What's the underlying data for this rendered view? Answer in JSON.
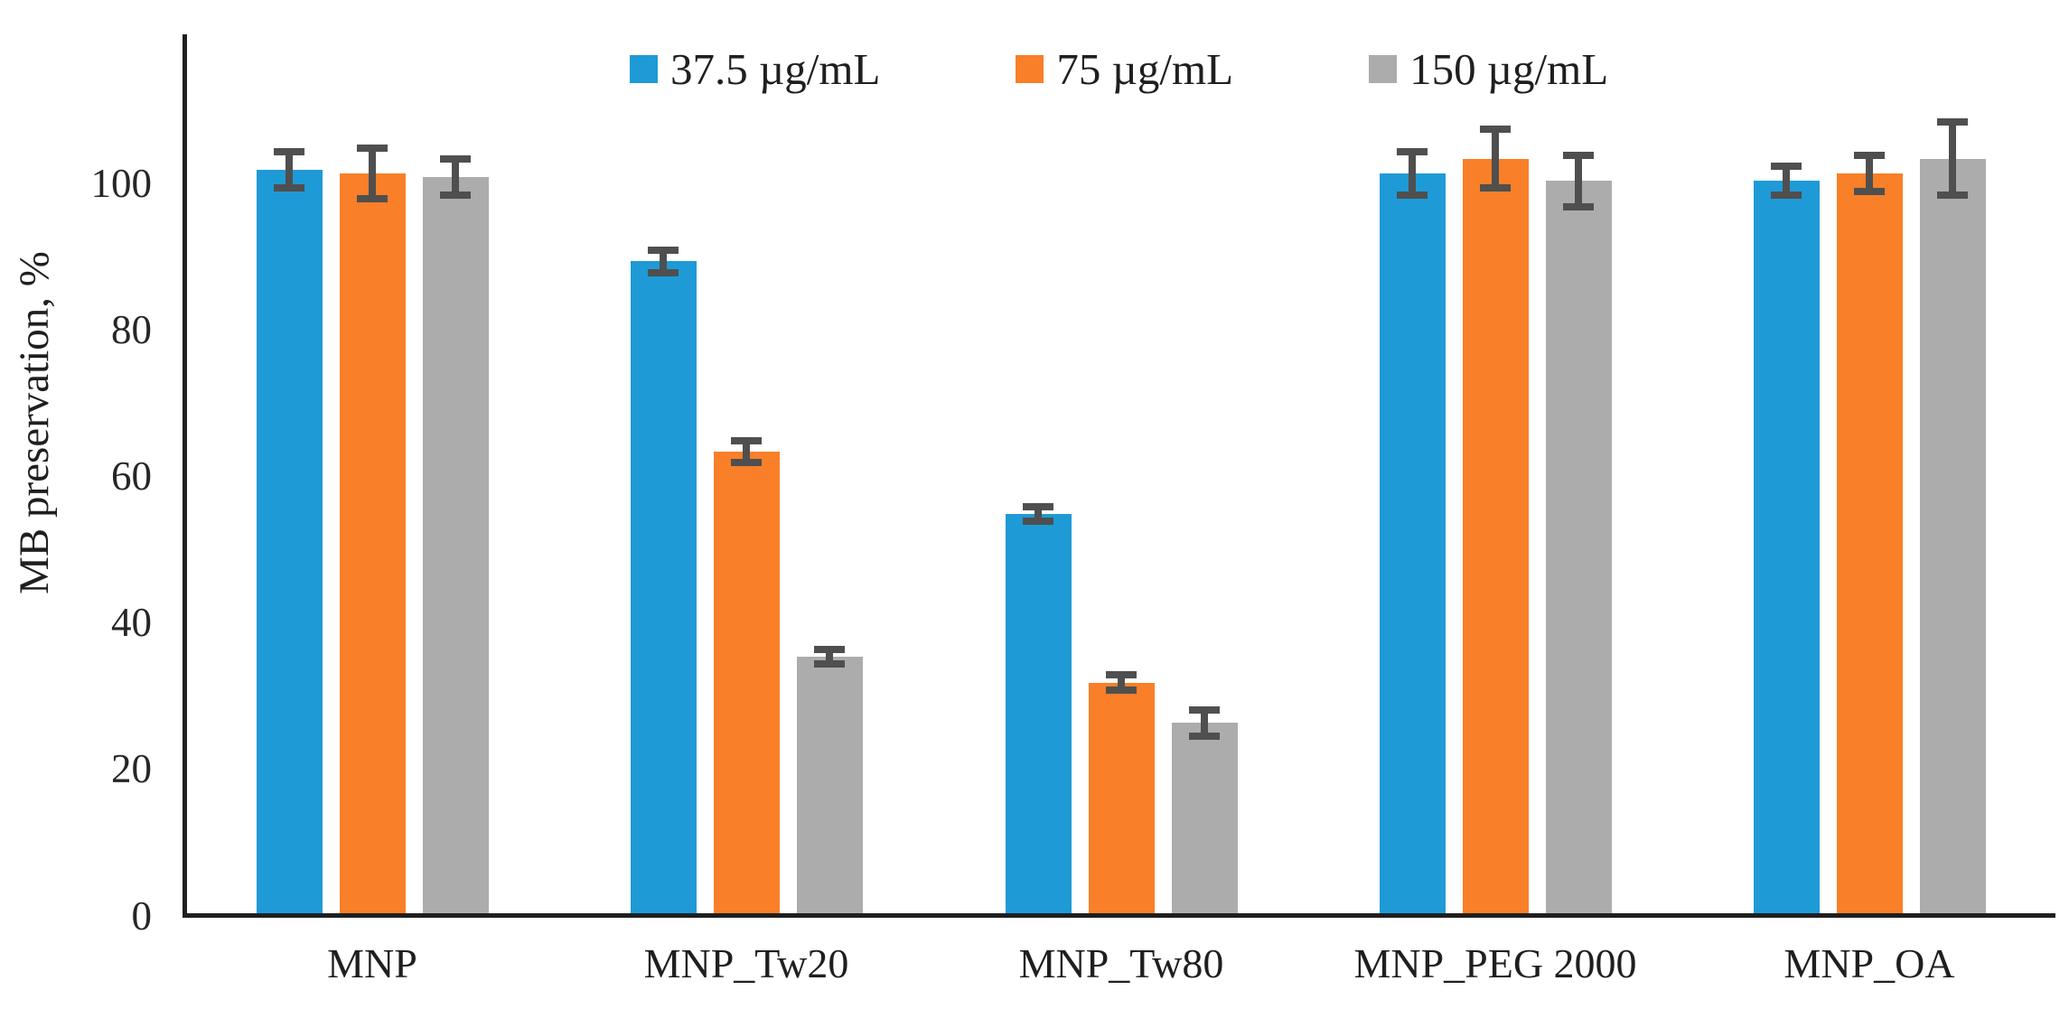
{
  "chart_data": {
    "type": "bar",
    "title": "",
    "xlabel": "",
    "ylabel": "MB preservation, %",
    "ylim": [
      0,
      120
    ],
    "yticks": [
      0,
      20,
      40,
      60,
      80,
      100
    ],
    "grid": false,
    "legend_position": "top",
    "error_bars": true,
    "categories": [
      "MNP",
      "MNP_Tw20",
      "MNP_Tw80",
      "MNP_PEG 2000",
      "MNP_OA"
    ],
    "series": [
      {
        "name": "37.5 µg/mL",
        "color": "#1E9AD7",
        "values": [
          101.5,
          89,
          54.5,
          101,
          100
        ],
        "errors": [
          2.5,
          1.5,
          1,
          3,
          2
        ]
      },
      {
        "name": "75 µg/mL",
        "color": "#F97F28",
        "values": [
          101,
          63,
          31.5,
          103,
          101
        ],
        "errors": [
          3.5,
          1.5,
          1,
          4,
          2.5
        ]
      },
      {
        "name": "150 µg/mL",
        "color": "#ACACAC",
        "values": [
          100.5,
          35,
          26,
          100,
          103
        ],
        "errors": [
          2.5,
          1,
          1.8,
          3.5,
          5
        ]
      }
    ],
    "colors": {
      "error_bar": "#4F4F4F",
      "axis": "#1F1F1F",
      "text": "#1F1F1F"
    }
  }
}
